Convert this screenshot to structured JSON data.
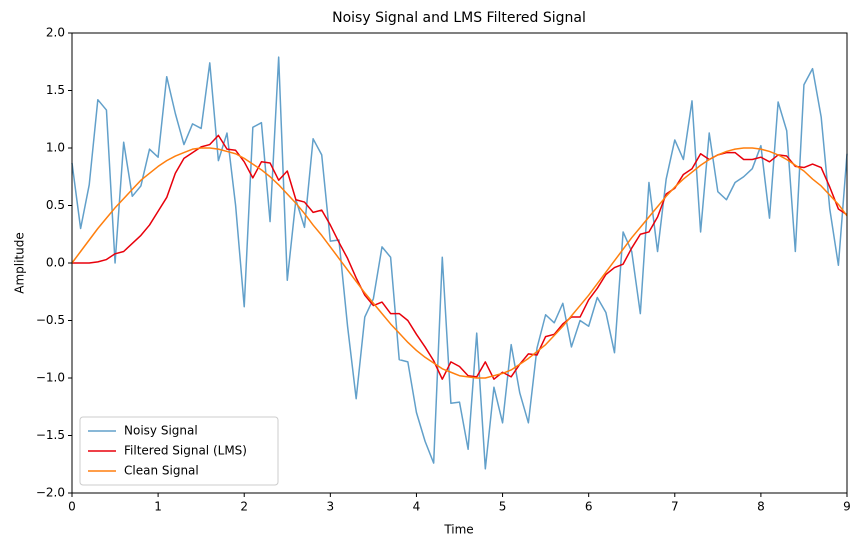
{
  "chart_data": {
    "type": "line",
    "title": "Noisy Signal and LMS Filtered Signal",
    "x_label": "Time",
    "y_label": "Amplitude",
    "x": [
      0,
      0.1,
      0.2,
      0.3,
      0.4,
      0.5,
      0.6,
      0.7,
      0.8,
      0.9,
      1,
      1.1,
      1.2,
      1.3,
      1.4,
      1.5,
      1.6,
      1.7,
      1.8,
      1.9,
      2,
      2.1,
      2.2,
      2.3,
      2.4,
      2.5,
      2.6,
      2.7,
      2.8,
      2.9,
      3,
      3.1,
      3.2,
      3.3,
      3.4,
      3.5,
      3.6,
      3.7,
      3.8,
      3.9,
      4,
      4.1,
      4.2,
      4.3,
      4.4,
      4.5,
      4.6,
      4.7,
      4.8,
      4.9,
      5,
      5.1,
      5.2,
      5.3,
      5.4,
      5.5,
      5.6,
      5.7,
      5.8,
      5.9,
      6,
      6.1,
      6.2,
      6.3,
      6.4,
      6.5,
      6.6,
      6.7,
      6.8,
      6.9,
      7,
      7.1,
      7.2,
      7.3,
      7.4,
      7.5,
      7.6,
      7.7,
      7.8,
      7.9,
      8,
      8.1,
      8.2,
      8.3,
      8.4,
      8.5,
      8.6,
      8.7,
      8.8,
      8.9,
      9
    ],
    "series": [
      {
        "name": "Noisy Signal",
        "color": "#1f77b4",
        "alpha": 0.7,
        "values": [
          0.87,
          0.3,
          0.68,
          1.42,
          1.33,
          0.0,
          1.05,
          0.58,
          0.67,
          0.99,
          0.92,
          1.62,
          1.3,
          1.03,
          1.21,
          1.17,
          1.74,
          0.89,
          1.13,
          0.5,
          -0.38,
          1.18,
          1.22,
          0.36,
          1.79,
          -0.15,
          0.55,
          0.31,
          1.08,
          0.94,
          0.19,
          0.2,
          -0.55,
          -1.18,
          -0.47,
          -0.31,
          0.14,
          0.05,
          -0.84,
          -0.86,
          -1.3,
          -1.55,
          -1.74,
          0.05,
          -1.22,
          -1.21,
          -1.62,
          -0.61,
          -1.79,
          -1.08,
          -1.39,
          -0.71,
          -1.13,
          -1.39,
          -0.74,
          -0.45,
          -0.52,
          -0.35,
          -0.73,
          -0.5,
          -0.55,
          -0.3,
          -0.43,
          -0.78,
          0.27,
          0.1,
          -0.44,
          0.7,
          0.1,
          0.73,
          1.07,
          0.9,
          1.41,
          0.27,
          1.13,
          0.62,
          0.55,
          0.7,
          0.75,
          0.82,
          1.02,
          0.39,
          1.4,
          1.15,
          0.1,
          1.55,
          1.69,
          1.27,
          0.47,
          -0.02,
          0.95
        ]
      },
      {
        "name": "Filtered Signal (LMS)",
        "color": "#e8000b",
        "alpha": 1,
        "values": [
          0,
          0,
          0,
          0.01,
          0.03,
          0.08,
          0.1,
          0.17,
          0.24,
          0.33,
          0.45,
          0.57,
          0.78,
          0.91,
          0.96,
          1.01,
          1.03,
          1.11,
          0.99,
          0.98,
          0.88,
          0.74,
          0.88,
          0.87,
          0.72,
          0.8,
          0.55,
          0.53,
          0.44,
          0.46,
          0.33,
          0.18,
          0.04,
          -0.13,
          -0.28,
          -0.37,
          -0.34,
          -0.44,
          -0.44,
          -0.5,
          -0.62,
          -0.73,
          -0.85,
          -1.01,
          -0.86,
          -0.9,
          -0.98,
          -0.99,
          -0.86,
          -1.01,
          -0.95,
          -0.99,
          -0.88,
          -0.79,
          -0.8,
          -0.64,
          -0.62,
          -0.53,
          -0.47,
          -0.47,
          -0.32,
          -0.22,
          -0.1,
          -0.04,
          -0.01,
          0.13,
          0.25,
          0.27,
          0.4,
          0.6,
          0.65,
          0.77,
          0.82,
          0.95,
          0.9,
          0.94,
          0.96,
          0.96,
          0.9,
          0.9,
          0.92,
          0.88,
          0.94,
          0.93,
          0.84,
          0.83,
          0.86,
          0.83,
          0.66,
          0.47,
          0.42
        ]
      },
      {
        "name": "Clean Signal",
        "color": "#ff7f0e",
        "alpha": 1,
        "values": [
          0.0,
          0.1,
          0.2,
          0.3,
          0.39,
          0.48,
          0.56,
          0.64,
          0.72,
          0.78,
          0.84,
          0.89,
          0.93,
          0.96,
          0.99,
          1.0,
          1.0,
          0.99,
          0.97,
          0.95,
          0.91,
          0.86,
          0.81,
          0.75,
          0.68,
          0.6,
          0.52,
          0.43,
          0.33,
          0.24,
          0.14,
          0.04,
          -0.06,
          -0.16,
          -0.26,
          -0.35,
          -0.44,
          -0.53,
          -0.61,
          -0.69,
          -0.76,
          -0.82,
          -0.87,
          -0.92,
          -0.95,
          -0.98,
          -0.99,
          -1.0,
          -1.0,
          -0.98,
          -0.96,
          -0.93,
          -0.88,
          -0.83,
          -0.77,
          -0.71,
          -0.63,
          -0.55,
          -0.46,
          -0.37,
          -0.28,
          -0.18,
          -0.08,
          0.02,
          0.12,
          0.22,
          0.31,
          0.4,
          0.49,
          0.58,
          0.66,
          0.73,
          0.79,
          0.85,
          0.9,
          0.94,
          0.97,
          0.99,
          1.0,
          1.0,
          0.99,
          0.97,
          0.94,
          0.9,
          0.85,
          0.8,
          0.73,
          0.67,
          0.59,
          0.51,
          0.41
        ]
      }
    ],
    "xlim": [
      0,
      9
    ],
    "xticks": [
      0,
      1,
      2,
      3,
      4,
      5,
      6,
      7,
      8,
      9
    ],
    "ylim": [
      -2,
      2
    ],
    "yticks": [
      {
        "value": -2,
        "label": "−2.0"
      },
      {
        "value": -1.5,
        "label": "−1.5"
      },
      {
        "value": -1,
        "label": "−1.0"
      },
      {
        "value": -0.5,
        "label": "−0.5"
      },
      {
        "value": 0,
        "label": "0.0"
      },
      {
        "value": 0.5,
        "label": "0.5"
      },
      {
        "value": 1,
        "label": "1.0"
      },
      {
        "value": 1.5,
        "label": "1.5"
      },
      {
        "value": 2,
        "label": "2.0"
      }
    ],
    "grid": false,
    "legend": "lower left"
  }
}
